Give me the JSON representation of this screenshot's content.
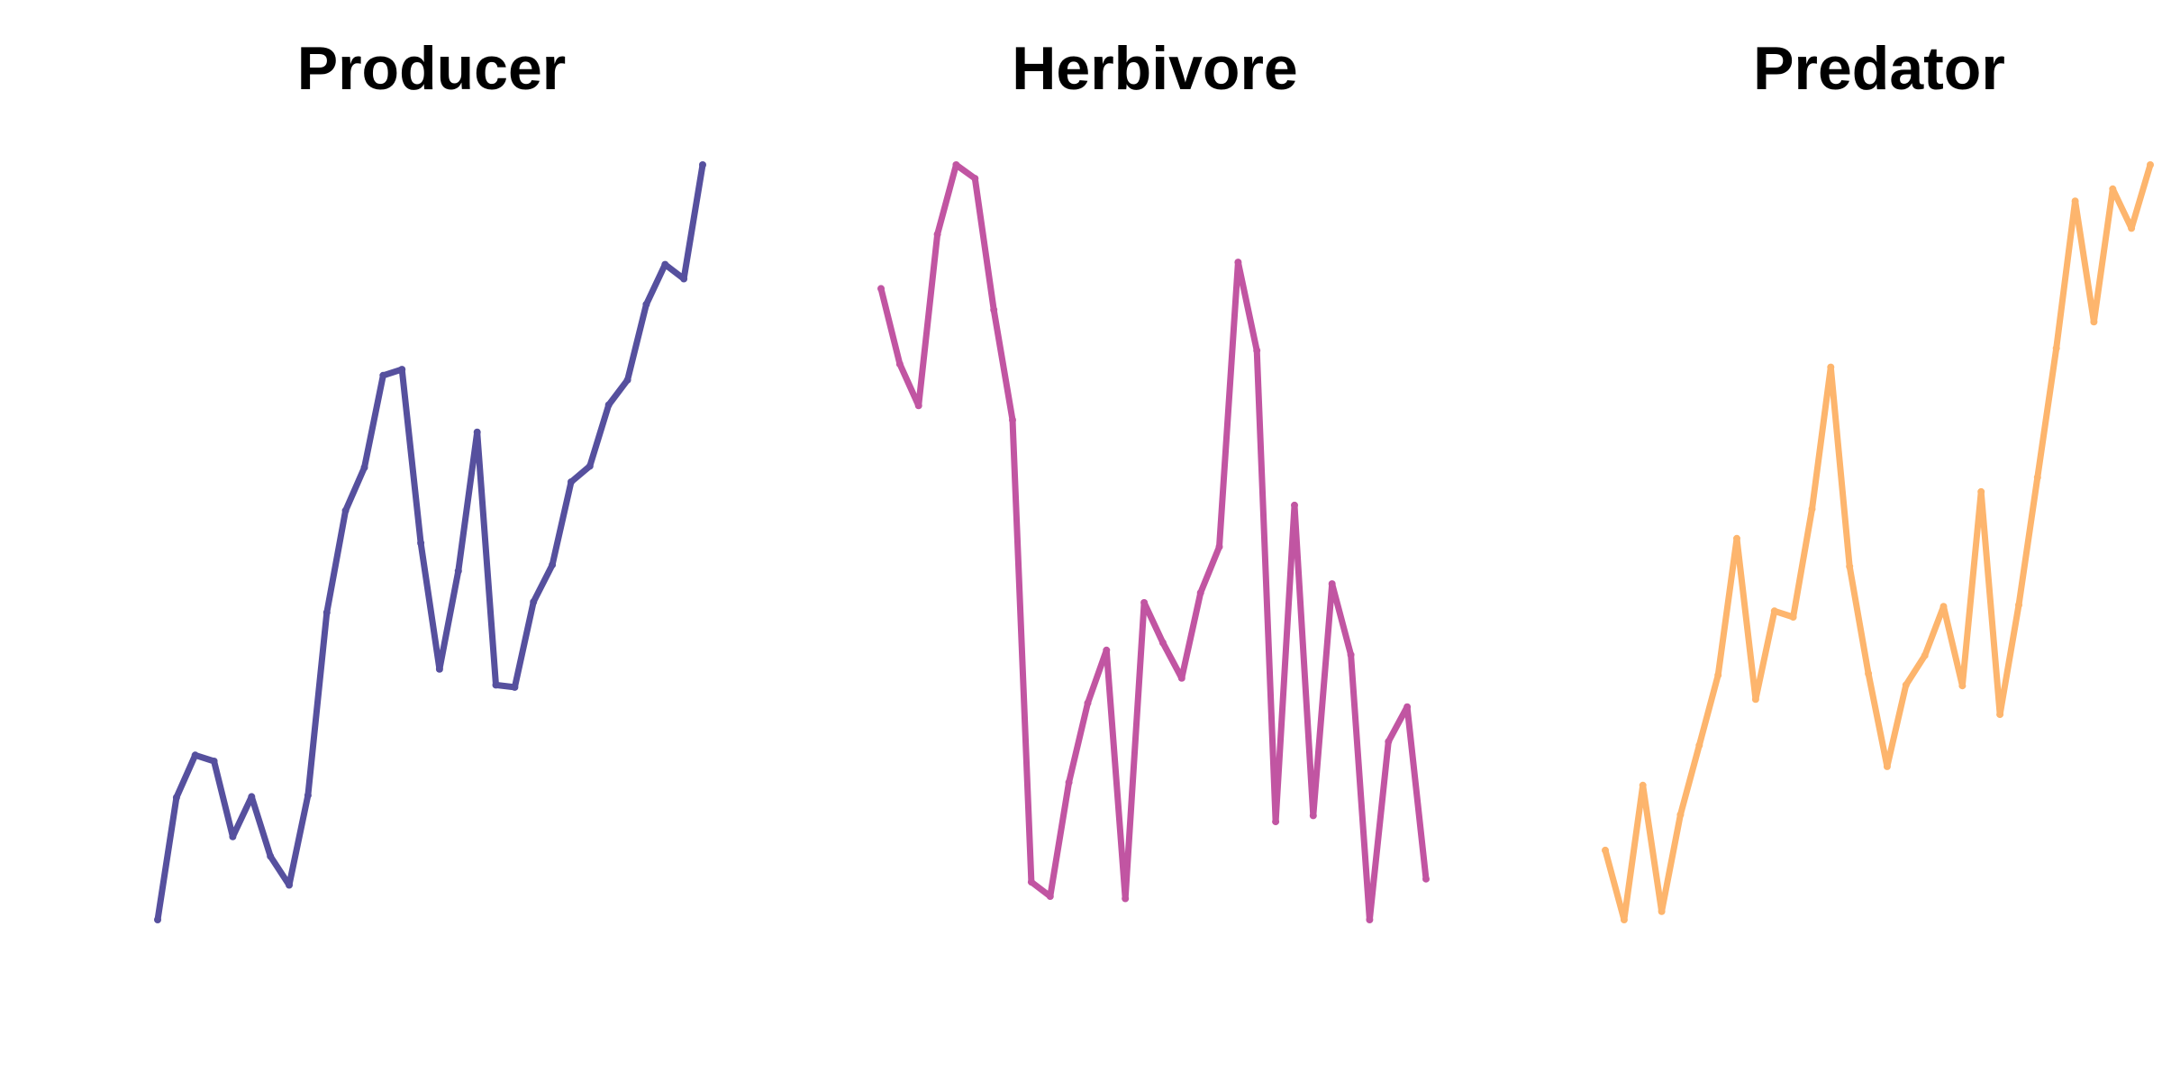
{
  "chart_data": [
    {
      "type": "line",
      "title": "Producer",
      "color": "#56509E",
      "x": [
        1,
        2,
        3,
        4,
        5,
        6,
        7,
        8,
        9,
        10,
        11,
        12,
        13,
        14,
        15,
        16,
        17,
        18,
        19,
        20,
        21,
        22,
        23,
        24,
        25,
        26,
        27,
        28,
        29,
        30
      ],
      "values": [
        0.0,
        0.162,
        0.218,
        0.21,
        0.11,
        0.163,
        0.084,
        0.046,
        0.165,
        0.407,
        0.542,
        0.599,
        0.721,
        0.729,
        0.499,
        0.332,
        0.462,
        0.646,
        0.311,
        0.308,
        0.421,
        0.47,
        0.58,
        0.601,
        0.682,
        0.715,
        0.815,
        0.868,
        0.849,
        1.0
      ],
      "ylim": [
        0,
        1
      ],
      "grid": false,
      "axes_visible": false
    },
    {
      "type": "line",
      "title": "Herbivore",
      "color": "#C155A2",
      "x": [
        1,
        2,
        3,
        4,
        5,
        6,
        7,
        8,
        9,
        10,
        11,
        12,
        13,
        14,
        15,
        16,
        17,
        18,
        19,
        20,
        21,
        22,
        23,
        24,
        25,
        26,
        27,
        28,
        29,
        30
      ],
      "values": [
        0.836,
        0.736,
        0.681,
        0.908,
        1.0,
        0.982,
        0.808,
        0.662,
        0.05,
        0.031,
        0.182,
        0.287,
        0.357,
        0.028,
        0.42,
        0.367,
        0.32,
        0.433,
        0.494,
        0.871,
        0.754,
        0.13,
        0.549,
        0.138,
        0.445,
        0.351,
        0.0,
        0.236,
        0.282,
        0.054
      ],
      "ylim": [
        0,
        1
      ],
      "grid": false,
      "axes_visible": false
    },
    {
      "type": "line",
      "title": "Predator",
      "color": "#FDB56D",
      "x": [
        1,
        2,
        3,
        4,
        5,
        6,
        7,
        8,
        9,
        10,
        11,
        12,
        13,
        14,
        15,
        16,
        17,
        18,
        19,
        20,
        21,
        22,
        23,
        24,
        25,
        26,
        27,
        28,
        29,
        30
      ],
      "values": [
        0.092,
        0.0,
        0.178,
        0.011,
        0.139,
        0.231,
        0.324,
        0.505,
        0.292,
        0.409,
        0.401,
        0.544,
        0.732,
        0.468,
        0.326,
        0.203,
        0.311,
        0.35,
        0.415,
        0.31,
        0.567,
        0.272,
        0.417,
        0.586,
        0.757,
        0.952,
        0.792,
        0.968,
        0.916,
        1.0
      ],
      "ylim": [
        0,
        1
      ],
      "grid": false,
      "axes_visible": false
    }
  ]
}
